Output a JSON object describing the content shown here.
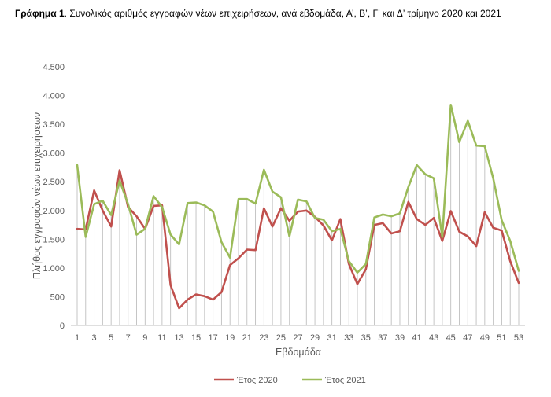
{
  "figure": {
    "label": "Γράφημα 1",
    "caption": ". Συνολικός αριθμός εγγραφών νέων επιχειρήσεων, ανά εβδομάδα, Α’, Β’, Γ’ και Δ’ τρίμηνο 2020 και 2021"
  },
  "chart_data": {
    "type": "line",
    "xlabel": "Εβδομάδα",
    "ylabel": "Πλήθος εγγραφών νέων επιχειρήσεων",
    "ylim": [
      0,
      4500
    ],
    "y_ticks": [
      0,
      500,
      1000,
      1500,
      2000,
      2500,
      3000,
      3500,
      4000,
      4500
    ],
    "y_tick_labels": [
      "0",
      "500",
      "1.000",
      "1.500",
      "2.000",
      "2.500",
      "3.000",
      "3.500",
      "4.000",
      "4.500"
    ],
    "x_tick_labels": [
      "1",
      "3",
      "5",
      "7",
      "9",
      "11",
      "13",
      "15",
      "17",
      "19",
      "21",
      "23",
      "25",
      "27",
      "29",
      "31",
      "33",
      "35",
      "37",
      "39",
      "41",
      "43",
      "45",
      "47",
      "49",
      "51",
      "53"
    ],
    "x": [
      1,
      2,
      3,
      4,
      5,
      6,
      7,
      8,
      9,
      10,
      11,
      12,
      13,
      14,
      15,
      16,
      17,
      18,
      19,
      20,
      21,
      22,
      23,
      24,
      25,
      26,
      27,
      28,
      29,
      30,
      31,
      32,
      33,
      34,
      35,
      36,
      37,
      38,
      39,
      40,
      41,
      42,
      43,
      44,
      45,
      46,
      47,
      48,
      49,
      50,
      51,
      52,
      53
    ],
    "grid": "vertical drop lines per week",
    "legend": "bottom-center",
    "series": [
      {
        "name": "Έτος 2020",
        "color": "#c0504d",
        "values": [
          1680,
          1670,
          2350,
          2000,
          1720,
          2700,
          2060,
          1900,
          1680,
          2080,
          2090,
          700,
          300,
          450,
          540,
          510,
          450,
          580,
          1050,
          1170,
          1320,
          1310,
          2040,
          1720,
          2040,
          1820,
          1980,
          2000,
          1890,
          1740,
          1480,
          1850,
          1070,
          720,
          980,
          1750,
          1780,
          1600,
          1640,
          2150,
          1850,
          1750,
          1870,
          1470,
          1990,
          1630,
          1550,
          1380,
          1970,
          1700,
          1650,
          1120,
          740
        ]
      },
      {
        "name": "Έτος 2021",
        "color": "#9bbb59",
        "values": [
          2790,
          1540,
          2110,
          2170,
          1920,
          2520,
          2110,
          1580,
          1680,
          2250,
          2060,
          1580,
          1410,
          2130,
          2140,
          2090,
          1980,
          1450,
          1180,
          2200,
          2200,
          2120,
          2710,
          2330,
          2230,
          1550,
          2190,
          2160,
          1870,
          1840,
          1640,
          1680,
          1120,
          920,
          1070,
          1880,
          1930,
          1900,
          1950,
          2410,
          2790,
          2630,
          2560,
          1540,
          3840,
          3190,
          3560,
          3130,
          3120,
          2560,
          1830,
          1470,
          950
        ]
      }
    ]
  }
}
